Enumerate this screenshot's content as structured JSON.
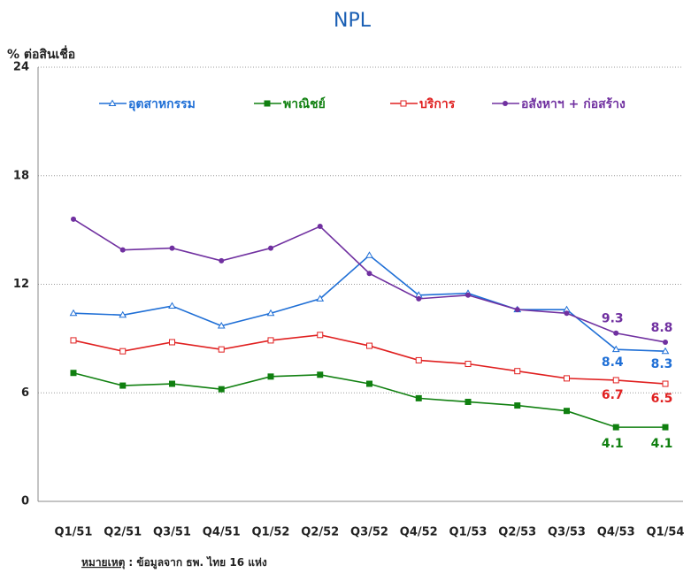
{
  "chart_data": {
    "type": "line",
    "title": "NPL",
    "y_label": "% ต่อสินเชื่อ",
    "categories": [
      "Q1/51",
      "Q2/51",
      "Q3/51",
      "Q4/51",
      "Q1/52",
      "Q2/52",
      "Q3/52",
      "Q4/52",
      "Q1/53",
      "Q2/53",
      "Q3/53",
      "Q4/53",
      "Q1/54"
    ],
    "ylim": [
      0,
      24
    ],
    "yticks": [
      0,
      6,
      12,
      18,
      24
    ],
    "grid": true,
    "legend": "top",
    "series": [
      {
        "name": "อุตสาหกรรม",
        "color": "#1f6fd6",
        "marker": "triangle-open",
        "values": [
          10.4,
          10.3,
          10.8,
          9.7,
          10.4,
          11.2,
          13.6,
          11.4,
          11.5,
          10.6,
          10.6,
          8.4,
          8.3
        ],
        "value_labels": [
          null,
          null,
          null,
          null,
          null,
          null,
          null,
          null,
          null,
          null,
          null,
          "8.4",
          "8.3"
        ]
      },
      {
        "name": "พาณิชย์",
        "color": "#108010",
        "marker": "square",
        "values": [
          7.1,
          6.4,
          6.5,
          6.2,
          6.9,
          7.0,
          6.5,
          5.7,
          5.5,
          5.3,
          5.0,
          4.1,
          4.1
        ],
        "value_labels": [
          null,
          null,
          null,
          null,
          null,
          null,
          null,
          null,
          null,
          null,
          null,
          "4.1",
          "4.1"
        ]
      },
      {
        "name": "บริการ",
        "color": "#e02020",
        "marker": "square-open",
        "values": [
          8.9,
          8.3,
          8.8,
          8.4,
          8.9,
          9.2,
          8.6,
          7.8,
          7.6,
          7.2,
          6.8,
          6.7,
          6.5
        ],
        "value_labels": [
          null,
          null,
          null,
          null,
          null,
          null,
          null,
          null,
          null,
          null,
          null,
          "6.7",
          "6.5"
        ]
      },
      {
        "name": "อสังหาฯ + ก่อสร้าง",
        "color": "#7030a0",
        "marker": "circle",
        "values": [
          15.6,
          13.9,
          14.0,
          13.3,
          14.0,
          15.2,
          12.6,
          11.2,
          11.4,
          10.6,
          10.4,
          9.3,
          8.8
        ],
        "value_labels": [
          null,
          null,
          null,
          null,
          null,
          null,
          null,
          null,
          null,
          null,
          null,
          "9.3",
          "8.8"
        ]
      }
    ]
  },
  "footnote": {
    "label": "หมายเหตุ",
    "text": ": ข้อมูลจาก ธพ. ไทย 16 แห่ง"
  }
}
